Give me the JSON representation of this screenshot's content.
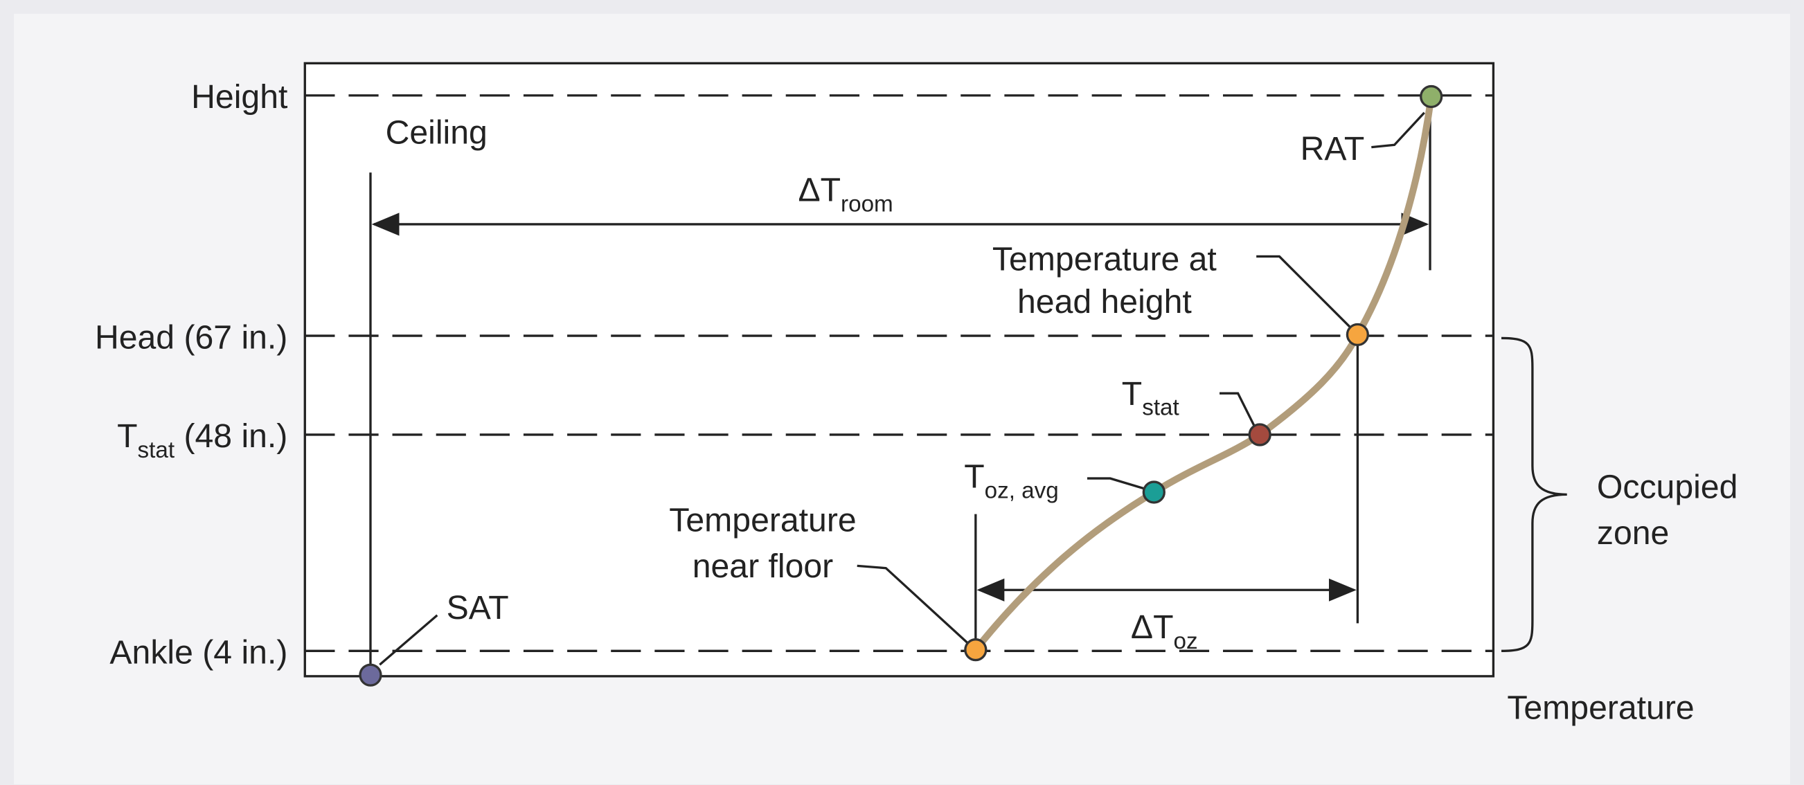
{
  "y_axis": {
    "top": "Height",
    "head": "Head (67 in.)",
    "tstat": {
      "base": "T",
      "sub": "stat",
      "rest": " (48 in.)"
    },
    "ankle": "Ankle (4 in.)"
  },
  "x_axis": "Temperature",
  "ceiling": "Ceiling",
  "delta_room": {
    "base": "ΔT",
    "sub": "room"
  },
  "delta_oz": {
    "base": "ΔT",
    "sub": "oz"
  },
  "points": {
    "sat": "SAT",
    "rat": "RAT",
    "head": [
      "Temperature at",
      "head height"
    ],
    "tstat": {
      "base": "T",
      "sub": "stat"
    },
    "toz_avg": {
      "base": "T",
      "sub": "oz, avg"
    },
    "floor": [
      "Temperature",
      "near floor"
    ]
  },
  "zone": [
    "Occupied",
    "zone"
  ]
}
